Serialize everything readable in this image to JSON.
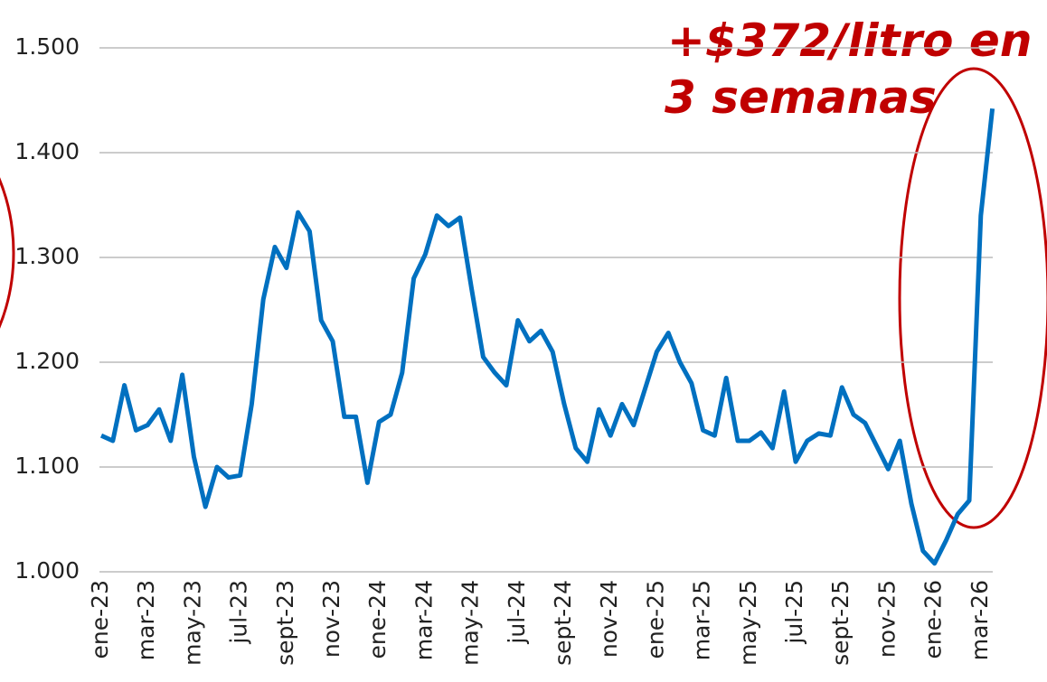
{
  "chart_data": {
    "type": "line",
    "annotation": [
      "+$372/litro en",
      "3 semanas"
    ],
    "categories": [
      "ene-23",
      null,
      null,
      null,
      "mar-23",
      null,
      null,
      null,
      "may-23",
      null,
      null,
      null,
      "jul-23",
      null,
      null,
      null,
      "sept-23",
      null,
      null,
      null,
      "nov-23",
      null,
      null,
      null,
      "ene-24",
      null,
      null,
      null,
      "mar-24",
      null,
      null,
      null,
      "may-24",
      null,
      null,
      null,
      "jul-24",
      null,
      null,
      null,
      "sept-24",
      null,
      null,
      null,
      "nov-24",
      null,
      null,
      null,
      "ene-25",
      null,
      null,
      null,
      "mar-25",
      null,
      null,
      null,
      "may-25",
      null,
      null,
      null,
      "jul-25",
      null,
      null,
      null,
      "sept-25",
      null,
      null,
      null,
      "nov-25",
      null,
      null,
      null,
      "ene-26",
      null,
      null,
      null,
      "mar-26",
      null
    ],
    "values": [
      1130,
      1125,
      1178,
      1135,
      1140,
      1155,
      1125,
      1188,
      1110,
      1062,
      1100,
      1090,
      1092,
      1160,
      1260,
      1310,
      1290,
      1343,
      1325,
      1240,
      1220,
      1148,
      1148,
      1085,
      1143,
      1150,
      1190,
      1280,
      1303,
      1340,
      1330,
      1338,
      1270,
      1205,
      1190,
      1178,
      1240,
      1220,
      1230,
      1210,
      1160,
      1118,
      1105,
      1155,
      1130,
      1160,
      1140,
      1175,
      1210,
      1228,
      1200,
      1180,
      1135,
      1130,
      1185,
      1125,
      1125,
      1133,
      1118,
      1172,
      1105,
      1125,
      1132,
      1130,
      1176,
      1150,
      1142,
      1120,
      1098,
      1125,
      1065,
      1020,
      1008,
      1030,
      1055,
      1068,
      1340,
      1442
    ],
    "color": "#0070c0",
    "ylim": [
      1000,
      1500
    ],
    "yticks": [
      {
        "value": 1000,
        "label": "1.000"
      },
      {
        "value": 1100,
        "label": "1.100"
      },
      {
        "value": 1200,
        "label": "1.200"
      },
      {
        "value": 1300,
        "label": "1.300"
      },
      {
        "value": 1400,
        "label": "1.400"
      },
      {
        "value": 1500,
        "label": "1.500"
      }
    ],
    "grid": true
  }
}
